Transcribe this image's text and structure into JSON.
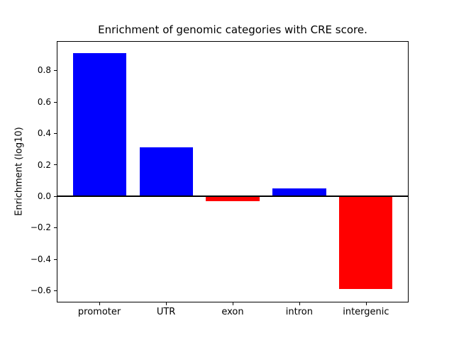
{
  "chart_data": {
    "type": "bar",
    "title": "Enrichment of genomic categories with CRE score.",
    "xlabel": "",
    "ylabel": "Enrichment (log10)",
    "categories": [
      "promoter",
      "UTR",
      "exon",
      "intron",
      "intergenic"
    ],
    "values": [
      0.91,
      0.31,
      -0.03,
      0.05,
      -0.59
    ],
    "bar_colors": [
      "#0000ff",
      "#0000ff",
      "#ff0000",
      "#0000ff",
      "#ff0000"
    ],
    "positive_color": "#0000ff",
    "negative_color": "#ff0000",
    "ylim": [
      -0.675,
      0.985
    ],
    "yticks": [
      0.8,
      0.6,
      0.4,
      0.2,
      0.0,
      -0.2,
      -0.4,
      -0.6
    ],
    "ytick_labels": [
      "0.8",
      "0.6",
      "0.4",
      "0.2",
      "0.0",
      "−0.2",
      "−0.4",
      "−0.6"
    ],
    "bar_width_fraction": 0.8,
    "zero_line": true,
    "grid": false,
    "legend": null,
    "frame_color": "#000000",
    "background_color": "#ffffff"
  }
}
